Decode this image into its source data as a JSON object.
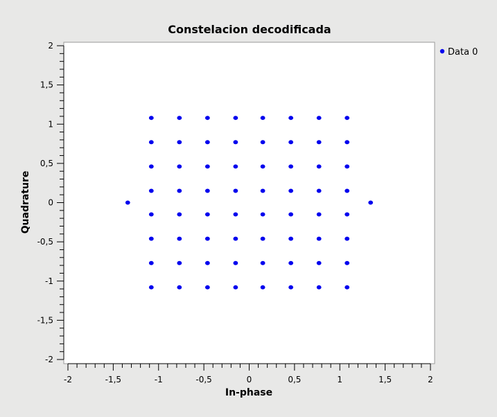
{
  "chart_data": {
    "type": "scatter",
    "title": "Constelacion decodificada",
    "xlabel": "In-phase",
    "ylabel": "Quadrature",
    "xlim": [
      -2,
      2
    ],
    "ylim": [
      -2,
      2
    ],
    "x_ticks": [
      "-2",
      "-1,5",
      "-1",
      "-0,5",
      "0",
      "0,5",
      "1",
      "1,5",
      "2"
    ],
    "y_ticks": [
      "2",
      "1,5",
      "1",
      "0,5",
      "0",
      "-0,5",
      "-1",
      "-1,5",
      "-2"
    ],
    "legend": {
      "entries": [
        "Data 0"
      ],
      "position": "top-right"
    },
    "series": [
      {
        "name": "Data 0",
        "color": "#0000ee",
        "grid_x": [
          -1.08,
          -0.77,
          -0.46,
          -0.15,
          0.15,
          0.46,
          0.77,
          1.08
        ],
        "grid_y": [
          1.08,
          0.77,
          0.46,
          0.15,
          -0.15,
          -0.46,
          -0.77,
          -1.08
        ],
        "extra_points": [
          {
            "x": -1.34,
            "y": 0
          },
          {
            "x": 1.34,
            "y": 0
          }
        ]
      }
    ]
  }
}
